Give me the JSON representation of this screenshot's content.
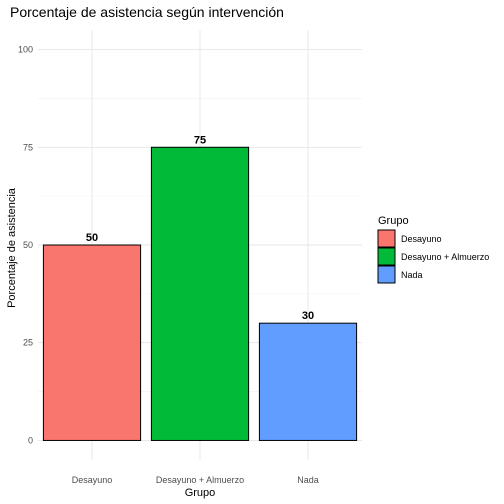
{
  "chart_data": {
    "type": "bar",
    "title": "Porcentaje de asistencia según intervención",
    "xlabel": "Grupo",
    "ylabel": "Porcentaje de asistencia",
    "categories": [
      "Desayuno",
      "Desayuno + Almuerzo",
      "Nada"
    ],
    "values": [
      50,
      75,
      30
    ],
    "data_labels": [
      "50",
      "75",
      "30"
    ],
    "colors": [
      "#F8766D",
      "#00BA38",
      "#619CFF"
    ],
    "ylim": [
      0,
      100
    ],
    "yticks": [
      0,
      25,
      50,
      75,
      100
    ],
    "grid": true,
    "legend": {
      "title": "Grupo",
      "position": "right",
      "entries": [
        "Desayuno",
        "Desayuno + Almuerzo",
        "Nada"
      ]
    }
  }
}
